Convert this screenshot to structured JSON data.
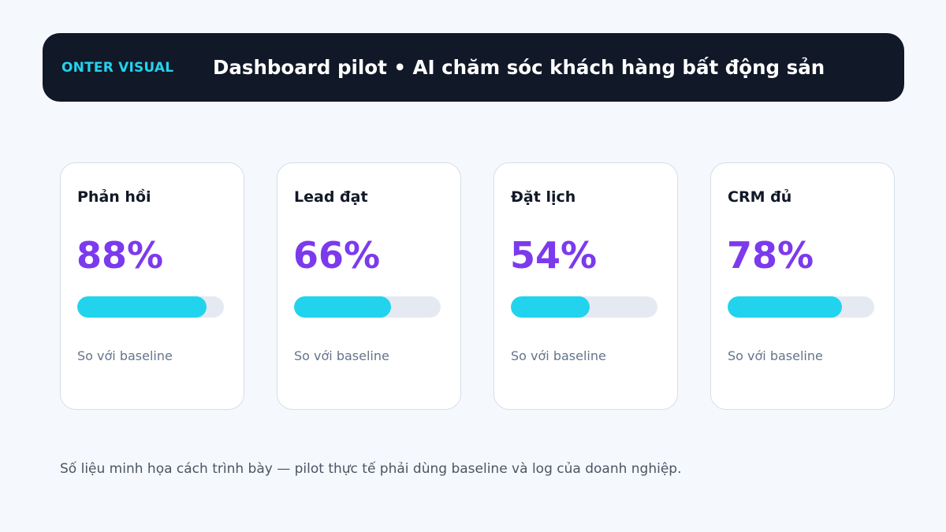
{
  "header": {
    "brand": "ONTER VISUAL",
    "title": "Dashboard pilot • AI chăm sóc khách hàng bất động sản"
  },
  "colors": {
    "header_bg": "#111827",
    "brand": "#22d3ee",
    "value": "#7c3aed",
    "bar_fill": "#22d3ee",
    "bar_track": "#e5eaf2"
  },
  "cards": [
    {
      "label": "Phản hồi",
      "value": "88%",
      "progress": 88,
      "note": "So với baseline"
    },
    {
      "label": "Lead đạt",
      "value": "66%",
      "progress": 66,
      "note": "So với baseline"
    },
    {
      "label": "Đặt lịch",
      "value": "54%",
      "progress": 54,
      "note": "So với baseline"
    },
    {
      "label": "CRM đủ",
      "value": "78%",
      "progress": 78,
      "note": "So với baseline"
    }
  ],
  "footnote": "Số liệu minh họa cách trình bày — pilot thực tế phải dùng baseline và log của doanh nghiệp."
}
